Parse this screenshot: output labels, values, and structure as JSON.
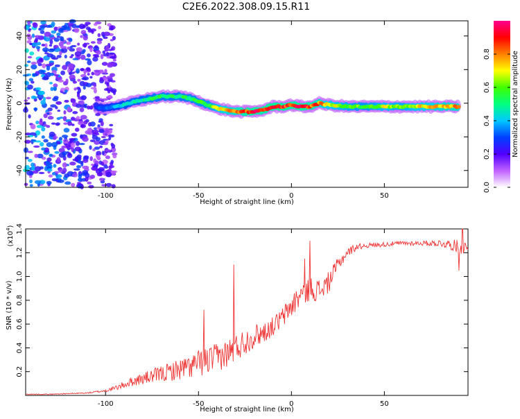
{
  "title": "C2E6.2022.308.09.15.R11",
  "chart_data": [
    {
      "type": "heatmap",
      "xlabel": "Height of straight line (km)",
      "ylabel": "Frequency (Hz)",
      "xlim": [
        -143,
        95
      ],
      "ylim": [
        -50,
        49
      ],
      "xticks": [
        -100,
        -50,
        0,
        50
      ],
      "xtick_labels": [
        "-100",
        "-50",
        "0",
        "50"
      ],
      "yticks": [
        -40,
        -20,
        0,
        20,
        40
      ],
      "ytick_labels": [
        "-40",
        "-20",
        "0",
        "20",
        "40"
      ],
      "colorbar": {
        "label": "Normalized spectral amplitude",
        "range": [
          0,
          1
        ],
        "ticks": [
          0.0,
          0.2,
          0.4,
          0.6,
          0.8
        ],
        "tick_labels": [
          "0.0",
          "0.2",
          "0.4",
          "0.6",
          "0.8"
        ],
        "colors": [
          "#ffffff",
          "#c060ff",
          "#5000ff",
          "#0040ff",
          "#00c8ff",
          "#00ff80",
          "#40ff00",
          "#ffff00",
          "#ff8000",
          "#ff0000",
          "#ff0090"
        ]
      },
      "ridge": {
        "name": "frequency ridge",
        "x": [
          -105,
          -100,
          -95,
          -90,
          -85,
          -80,
          -75,
          -70,
          -65,
          -60,
          -55,
          -50,
          -45,
          -40,
          -35,
          -30,
          -25,
          -20,
          -15,
          -10,
          -5,
          0,
          5,
          10,
          15,
          20,
          30,
          40,
          50,
          60,
          70,
          80,
          90
        ],
        "y": [
          -2,
          -3,
          -2,
          -1,
          1,
          2,
          3,
          4,
          4,
          4,
          3,
          1,
          -1,
          -3,
          -4,
          -5,
          -5,
          -5,
          -4,
          -2,
          -2,
          -1,
          -2,
          -2,
          0,
          -1,
          -2,
          -2,
          -2,
          -2,
          -2,
          -2,
          -2
        ],
        "amplitude": [
          0.3,
          0.35,
          0.4,
          0.45,
          0.5,
          0.5,
          0.55,
          0.55,
          0.55,
          0.55,
          0.55,
          0.6,
          0.6,
          0.7,
          0.8,
          0.85,
          0.9,
          0.95,
          0.9,
          0.95,
          0.95,
          0.9,
          0.95,
          0.9,
          0.85,
          0.75,
          0.65,
          0.6,
          0.7,
          0.65,
          0.75,
          0.8,
          0.85
        ]
      },
      "noise_region": {
        "x": [
          -143,
          -95
        ],
        "amplitude": [
          0.1,
          0.45
        ]
      }
    },
    {
      "type": "line",
      "xlabel": "Height of straight line (km)",
      "ylabel": "SNR (10 * v/v)",
      "yscale_label": "(x10",
      "yscale_exp": "4",
      "xlim": [
        -143,
        95
      ],
      "ylim": [
        0,
        1.4
      ],
      "xticks": [
        -100,
        -50,
        0,
        50
      ],
      "xtick_labels": [
        "-100",
        "-50",
        "0",
        "50"
      ],
      "yticks": [
        0.2,
        0.4,
        0.6,
        0.8,
        1.0,
        1.2,
        1.4
      ],
      "ytick_labels": [
        "0.2",
        "0.4",
        "0.6",
        "0.8",
        "1.0",
        "1.2",
        "1.4"
      ],
      "color": "#ee3333",
      "series": [
        {
          "x": [
            -143,
            -130,
            -120,
            -110,
            -105,
            -100,
            -95,
            -90,
            -85,
            -80,
            -75,
            -70,
            -65,
            -60,
            -55,
            -50,
            -45,
            -40,
            -35,
            -30,
            -25,
            -20,
            -15,
            -10,
            -5,
            0,
            5,
            10,
            15,
            20,
            25,
            30,
            35,
            40,
            50,
            60,
            70,
            80,
            85,
            90,
            95
          ],
          "y": [
            0.01,
            0.01,
            0.015,
            0.02,
            0.03,
            0.04,
            0.06,
            0.09,
            0.12,
            0.14,
            0.16,
            0.18,
            0.2,
            0.22,
            0.24,
            0.27,
            0.29,
            0.32,
            0.35,
            0.4,
            0.45,
            0.5,
            0.53,
            0.58,
            0.65,
            0.75,
            0.85,
            0.9,
            0.88,
            0.95,
            1.1,
            1.2,
            1.25,
            1.26,
            1.27,
            1.28,
            1.28,
            1.28,
            1.27,
            1.25,
            1.24
          ],
          "noise": [
            0.003,
            0.003,
            0.004,
            0.005,
            0.008,
            0.012,
            0.02,
            0.03,
            0.04,
            0.05,
            0.06,
            0.07,
            0.08,
            0.09,
            0.1,
            0.11,
            0.12,
            0.12,
            0.12,
            0.12,
            0.11,
            0.1,
            0.09,
            0.08,
            0.09,
            0.1,
            0.11,
            0.1,
            0.1,
            0.09,
            0.06,
            0.04,
            0.03,
            0.02,
            0.02,
            0.02,
            0.02,
            0.03,
            0.04,
            0.06,
            0.05
          ]
        }
      ],
      "spikes": [
        {
          "x": -31,
          "y": 1.1
        },
        {
          "x": -47,
          "y": 0.72
        },
        {
          "x": 10,
          "y": 1.3
        },
        {
          "x": 7,
          "y": 1.15
        },
        {
          "x": 92,
          "y": 1.4
        },
        {
          "x": 90,
          "y": 1.05
        }
      ]
    }
  ]
}
